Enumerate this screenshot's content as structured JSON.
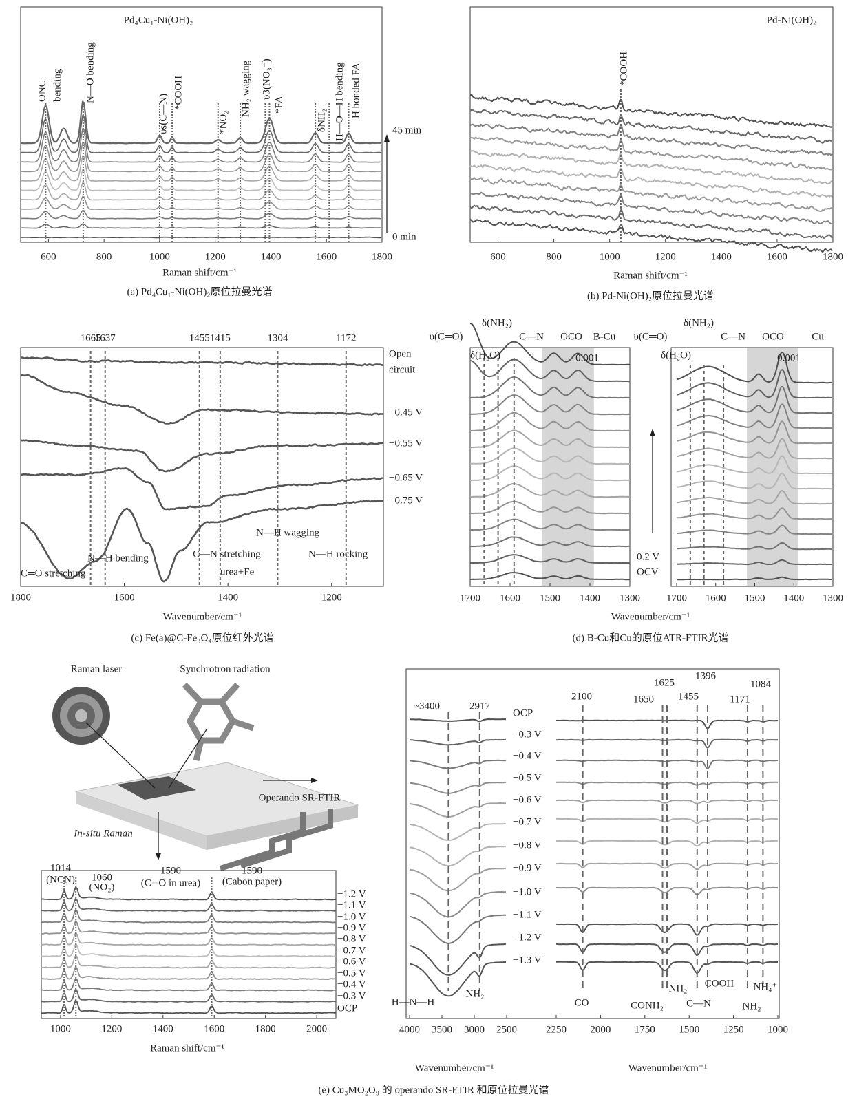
{
  "chart_data": [
    {
      "type": "spectra",
      "title": "Pd₄Cu₁-Ni(OH)₂",
      "xlim": [
        500,
        1800
      ],
      "xticks": [
        600,
        800,
        1000,
        1200,
        1400,
        1600,
        1800
      ],
      "xlabel": "Raman shift/cm⁻¹",
      "caption": "(a) Pd₄Cu₁-Ni(OH)₂原位拉曼光谱",
      "peaks": [
        590,
        725,
        1000,
        1045,
        1210,
        1290,
        1380,
        1395,
        1560,
        1610,
        1680
      ],
      "peak_labels": false,
      "levels": [
        "45 min",
        "0 min"
      ],
      "annotations": [
        "ONC",
        "bending",
        "N—O bending",
        "υs(C—N)",
        "*COOH",
        "*NO₂",
        "NH₂ wagging",
        "υ3(NO₃⁻)",
        "*FA",
        "δNH₂",
        "H—O—H bending",
        "H bonded FA"
      ]
    },
    {
      "type": "spectra",
      "title": "Pd-Ni(OH)₂",
      "xlim": [
        500,
        1800
      ],
      "xticks": [
        600,
        800,
        1000,
        1200,
        1400,
        1600,
        1800
      ],
      "xlabel": "Raman shift/cm⁻¹",
      "caption": "(b) Pd-Ni(OH)₂原位拉曼光谱",
      "peaks": [
        1040
      ],
      "peak_labels": false,
      "levels": [],
      "annotations": [
        "*COOH"
      ]
    },
    {
      "type": "spectra",
      "xlim": [
        1800,
        1100
      ],
      "xticks": [
        1800,
        1600,
        1400,
        1200
      ],
      "xlabel": "Wavenumber/cm⁻¹",
      "caption": "(c) Fe(a)@C-Fe₃O₄原位红外光谱",
      "peaks": [
        1665,
        1637,
        1455,
        1415,
        1304,
        1172
      ],
      "peak_labels": true,
      "levels": [
        "−0.45 V",
        "−0.55 V",
        "−0.65 V",
        "−0.75 V"
      ],
      "annotations": [
        "Open",
        "circuit",
        "N—H wagging",
        "N—H bending",
        "C—N stretching",
        "urea+Fe",
        "N—H rocking",
        "C═O stretching"
      ]
    },
    {
      "type": "spectra",
      "xlim": [
        1700,
        1300
      ],
      "xticks": [
        1700,
        1600,
        1500,
        1400,
        1300
      ],
      "xlabel": "Wavenumber/cm⁻¹",
      "caption": "(d) B-Cu和Cu的原位ATR-FTIR光谱",
      "peaks": [
        1665,
        1630,
        1590
      ],
      "peak_labels": false,
      "shaded_range": [
        1520,
        1390
      ],
      "levels": [],
      "annotations": [
        "υ(C═O)",
        "δ(NH₂)",
        "C—N",
        "OCO",
        "B-Cu",
        "δ(H₂O)",
        "0.001"
      ]
    },
    {
      "type": "spectra",
      "xlim": [
        1700,
        1300
      ],
      "xticks": [
        1700,
        1600,
        1500,
        1400,
        1300
      ],
      "peaks": [
        1665,
        1630,
        1580
      ],
      "peak_labels": false,
      "shaded_range": [
        1520,
        1390
      ],
      "levels": [
        "0.2 V",
        "OCV"
      ],
      "annotations": [
        "υ(C═O)",
        "δ(NH₂)",
        "C—N",
        "OCO",
        "Cu",
        "δ(H₂O)",
        "0.001"
      ]
    },
    {
      "type": "spectra",
      "xlim": [
        925,
        2075
      ],
      "xticks": [
        1000,
        1200,
        1400,
        1600,
        1800,
        2000
      ],
      "xlabel": "Raman shift/cm⁻¹",
      "caption": "(e) Cu₃MO₂O₉ 的 operando SR-FTIR 和原位拉曼光谱",
      "peaks": [
        1014,
        1060,
        1590,
        1590
      ],
      "peak_labels": true,
      "levels": [
        "−1.2 V",
        "−1.1 V",
        "−1.0 V",
        "−0.9 V",
        "−0.8 V",
        "−0.7 V",
        "−0.6 V",
        "−0.5 V",
        "−0.4 V",
        "−0.3 V",
        "OCP"
      ],
      "annotations": [
        "(NCN)",
        "(NO₂)",
        "(C═O in urea)",
        "(Cabon paper)"
      ]
    },
    {
      "type": "spectra",
      "xlim": [
        4000,
        2500
      ],
      "xticks": [
        4000,
        3500,
        3000,
        2500
      ],
      "xlabel": "Wavenumber/cm⁻¹",
      "peaks": [
        {
          "value": 3400,
          "label": "~3400"
        },
        2917
      ],
      "peak_labels": true,
      "levels": [
        "OCP",
        "−0.3 V",
        "−0.4 V",
        "−0.5 V",
        "−0.6 V",
        "−0.7 V",
        "−0.8 V",
        "−0.9 V",
        "−1.0 V",
        "−1.1 V",
        "−1.2 V",
        "−1.3 V"
      ],
      "annotations": [
        "H—N—H",
        "NH₂"
      ]
    },
    {
      "type": "spectra",
      "xlim": [
        2250,
        1000
      ],
      "xticks": [
        2250,
        2000,
        1750,
        1500,
        1250,
        1000
      ],
      "xlabel": "Wavenumber/cm⁻¹",
      "peaks": [
        2100,
        1650,
        1625,
        1396,
        1455,
        1171,
        1084
      ],
      "peak_labels": true,
      "levels": [],
      "annotations": [
        "CO",
        "CONH₂",
        "NH₂",
        "C—N",
        "COOH",
        "NH₂",
        "NH₄⁺"
      ]
    }
  ],
  "diagram": {
    "labels": [
      "Raman laser",
      "Synchrotron radiation",
      "Operando SR-FTIR",
      "In-situ Raman"
    ]
  }
}
